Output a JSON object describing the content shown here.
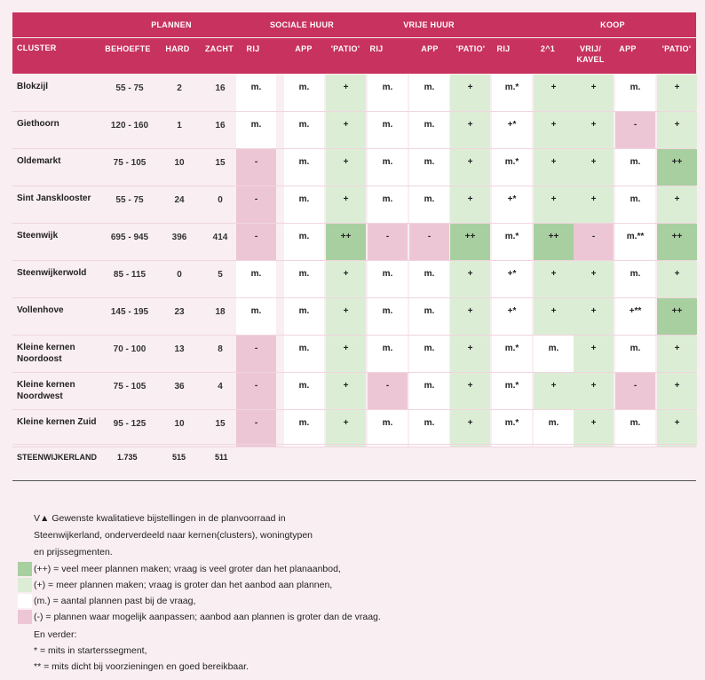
{
  "colors": {
    "header": "#c8325f",
    "dark_green": "#a8cfa0",
    "light_green": "#dcedd6",
    "white": "#ffffff",
    "pink": "#edc6d6",
    "page_bg": "#f9eef2"
  },
  "groups": [
    "PLANNEN",
    "SOCIALE HUUR",
    "VRIJE HUUR",
    "KOOP"
  ],
  "columns": [
    "CLUSTER",
    "BEHOEFTE",
    "HARD",
    "ZACHT",
    "RIJ",
    "APP",
    "'PATIO'",
    "RIJ",
    "APP",
    "'PATIO'",
    "RIJ",
    "2^1",
    "VRIJ/ KAVEL",
    "APP",
    "'PATIO'"
  ],
  "rows": [
    {
      "name": "Blokzijl",
      "behoefte": "55 - 75",
      "hard": "2",
      "zacht": "16",
      "cells": [
        [
          "m.",
          "w"
        ],
        [
          "m.",
          "w"
        ],
        [
          "+",
          "lg"
        ],
        [
          "m.",
          "w"
        ],
        [
          "m.",
          "w"
        ],
        [
          "+",
          "lg"
        ],
        [
          "m.*",
          "w"
        ],
        [
          "+",
          "lg"
        ],
        [
          "+",
          "lg"
        ],
        [
          "m.",
          "w"
        ],
        [
          "+",
          "lg"
        ]
      ]
    },
    {
      "name": "Giethoorn",
      "behoefte": "120 - 160",
      "hard": "1",
      "zacht": "16",
      "cells": [
        [
          "m.",
          "w"
        ],
        [
          "m.",
          "w"
        ],
        [
          "+",
          "lg"
        ],
        [
          "m.",
          "w"
        ],
        [
          "m.",
          "w"
        ],
        [
          "+",
          "lg"
        ],
        [
          "+*",
          "w"
        ],
        [
          "+",
          "lg"
        ],
        [
          "+",
          "lg"
        ],
        [
          "-",
          "p"
        ],
        [
          "+",
          "lg"
        ]
      ]
    },
    {
      "name": "Oldemarkt",
      "behoefte": "75 - 105",
      "hard": "10",
      "zacht": "15",
      "cells": [
        [
          "-",
          "p"
        ],
        [
          "m.",
          "w"
        ],
        [
          "+",
          "lg"
        ],
        [
          "m.",
          "w"
        ],
        [
          "m.",
          "w"
        ],
        [
          "+",
          "lg"
        ],
        [
          "m.*",
          "w"
        ],
        [
          "+",
          "lg"
        ],
        [
          "+",
          "lg"
        ],
        [
          "m.",
          "w"
        ],
        [
          "++",
          "dg"
        ]
      ]
    },
    {
      "name": "Sint Jansklooster",
      "behoefte": "55 - 75",
      "hard": "24",
      "zacht": "0",
      "cells": [
        [
          "-",
          "p"
        ],
        [
          "m.",
          "w"
        ],
        [
          "+",
          "lg"
        ],
        [
          "m.",
          "w"
        ],
        [
          "m.",
          "w"
        ],
        [
          "+",
          "lg"
        ],
        [
          "+*",
          "w"
        ],
        [
          "+",
          "lg"
        ],
        [
          "+",
          "lg"
        ],
        [
          "m.",
          "w"
        ],
        [
          "+",
          "lg"
        ]
      ]
    },
    {
      "name": "Steenwijk",
      "behoefte": "695 - 945",
      "hard": "396",
      "zacht": "414",
      "cells": [
        [
          "-",
          "p"
        ],
        [
          "m.",
          "w"
        ],
        [
          "++",
          "dg"
        ],
        [
          "-",
          "p"
        ],
        [
          "-",
          "p"
        ],
        [
          "++",
          "dg"
        ],
        [
          "m.*",
          "w"
        ],
        [
          "++",
          "dg"
        ],
        [
          "-",
          "p"
        ],
        [
          "m.**",
          "w"
        ],
        [
          "++",
          "dg"
        ]
      ]
    },
    {
      "name": "Steenwijkerwold",
      "behoefte": "85 - 115",
      "hard": "0",
      "zacht": "5",
      "cells": [
        [
          "m.",
          "w"
        ],
        [
          "m.",
          "w"
        ],
        [
          "+",
          "lg"
        ],
        [
          "m.",
          "w"
        ],
        [
          "m.",
          "w"
        ],
        [
          "+",
          "lg"
        ],
        [
          "+*",
          "w"
        ],
        [
          "+",
          "lg"
        ],
        [
          "+",
          "lg"
        ],
        [
          "m.",
          "w"
        ],
        [
          "+",
          "lg"
        ]
      ]
    },
    {
      "name": "Vollenhove",
      "behoefte": "145 - 195",
      "hard": "23",
      "zacht": "18",
      "cells": [
        [
          "m.",
          "w"
        ],
        [
          "m.",
          "w"
        ],
        [
          "+",
          "lg"
        ],
        [
          "m.",
          "w"
        ],
        [
          "m.",
          "w"
        ],
        [
          "+",
          "lg"
        ],
        [
          "+*",
          "w"
        ],
        [
          "+",
          "lg"
        ],
        [
          "+",
          "lg"
        ],
        [
          "+**",
          "w"
        ],
        [
          "++",
          "dg"
        ]
      ]
    },
    {
      "name": "Kleine kernen Noordoost",
      "behoefte": "70 - 100",
      "hard": "13",
      "zacht": "8",
      "cells": [
        [
          "-",
          "p"
        ],
        [
          "m.",
          "w"
        ],
        [
          "+",
          "lg"
        ],
        [
          "m.",
          "w"
        ],
        [
          "m.",
          "w"
        ],
        [
          "+",
          "lg"
        ],
        [
          "m.*",
          "w"
        ],
        [
          "m.",
          "w"
        ],
        [
          "+",
          "lg"
        ],
        [
          "m.",
          "w"
        ],
        [
          "+",
          "lg"
        ]
      ]
    },
    {
      "name": "Kleine kernen Noordwest",
      "behoefte": "75 - 105",
      "hard": "36",
      "zacht": "4",
      "cells": [
        [
          "-",
          "p"
        ],
        [
          "m.",
          "w"
        ],
        [
          "+",
          "lg"
        ],
        [
          "-",
          "p"
        ],
        [
          "m.",
          "w"
        ],
        [
          "+",
          "lg"
        ],
        [
          "m.*",
          "w"
        ],
        [
          "+",
          "lg"
        ],
        [
          "+",
          "lg"
        ],
        [
          "-",
          "p"
        ],
        [
          "+",
          "lg"
        ]
      ]
    },
    {
      "name": "Kleine kernen Zuid",
      "behoefte": "95 - 125",
      "hard": "10",
      "zacht": "15",
      "cells": [
        [
          "-",
          "p"
        ],
        [
          "m.",
          "w"
        ],
        [
          "+",
          "lg"
        ],
        [
          "m.",
          "w"
        ],
        [
          "m.",
          "w"
        ],
        [
          "+",
          "lg"
        ],
        [
          "m.*",
          "w"
        ],
        [
          "m.",
          "w"
        ],
        [
          "+",
          "lg"
        ],
        [
          "m.",
          "w"
        ],
        [
          "+",
          "lg"
        ]
      ]
    }
  ],
  "total": {
    "label": "STEENWIJKERLAND",
    "behoefte": "1.735",
    "hard": "515",
    "zacht": "511"
  },
  "legend": {
    "caption_lines": [
      "V▲  Gewenste kwalitatieve bijstellingen in de planvoorraad in",
      "Steenwijkerland, onderverdeeld naar kernen(clusters), woningtypen",
      "en prijssegmenten."
    ],
    "items": [
      {
        "text": "(++) = veel meer plannen maken; vraag is veel groter dan het planaanbod,",
        "color": "#a8cfa0"
      },
      {
        "text": " (+) = meer plannen maken; vraag is groter dan het aanbod aan plannen,",
        "color": "#dcedd6"
      },
      {
        "text": "(m.) = aantal plannen past bij de vraag,",
        "color": "#ffffff"
      },
      {
        "text": "(-) = plannen waar mogelijk aanpassen; aanbod aan plannen is groter dan de vraag.",
        "color": "#edc6d6"
      }
    ],
    "extra_lines": [
      "En verder:",
      "* = mits in starterssegment,",
      "** = mits dicht bij voorzieningen en goed bereikbaar."
    ]
  }
}
